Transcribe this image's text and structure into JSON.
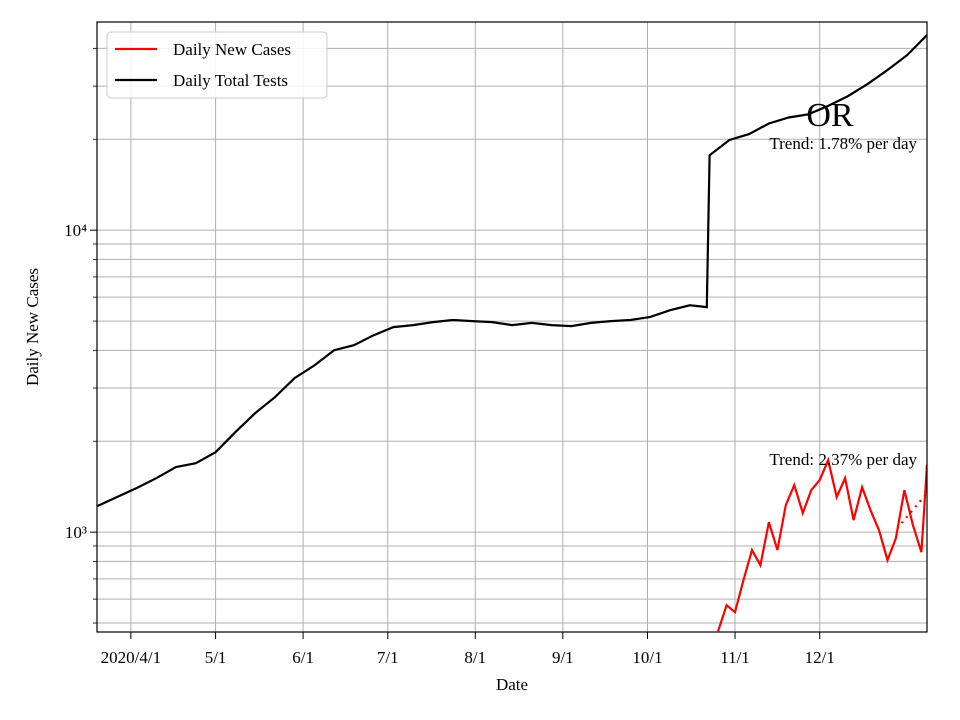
{
  "chart_data": {
    "type": "line",
    "xlabel": "Date",
    "ylabel": "Daily New Cases",
    "log_y": true,
    "grid": true,
    "legend": "upper left",
    "xlim": [
      "2020-03-20",
      "2021-01-08"
    ],
    "xticks": [
      {
        "value": "2020-04-01",
        "label": "2020/4/1"
      },
      {
        "value": "2020-05-01",
        "label": "5/1"
      },
      {
        "value": "2020-06-01",
        "label": "6/1"
      },
      {
        "value": "2020-07-01",
        "label": "7/1"
      },
      {
        "value": "2020-08-01",
        "label": "8/1"
      },
      {
        "value": "2020-09-01",
        "label": "9/1"
      },
      {
        "value": "2020-10-01",
        "label": "10/1"
      },
      {
        "value": "2020-11-01",
        "label": "11/1"
      },
      {
        "value": "2020-12-01",
        "label": "12/1"
      }
    ],
    "ylim": [
      467,
      48900
    ],
    "yticks": [
      {
        "value": 1000,
        "label": "10³"
      },
      {
        "value": 10000,
        "label": "10⁴"
      }
    ],
    "yminorticks": [
      500,
      600,
      700,
      800,
      900,
      2000,
      3000,
      4000,
      5000,
      6000,
      7000,
      8000,
      9000,
      20000,
      30000,
      40000
    ],
    "series": [
      {
        "name": "Daily New Cases",
        "color": "#ff0000",
        "x": [
          "2020-10-26",
          "2020-10-29",
          "2020-11-01",
          "2020-11-04",
          "2020-11-07",
          "2020-11-10",
          "2020-11-13",
          "2020-11-16",
          "2020-11-19",
          "2020-11-22",
          "2020-11-25",
          "2020-11-28",
          "2020-12-01",
          "2020-12-04",
          "2020-12-07",
          "2020-12-10",
          "2020-12-13",
          "2020-12-16",
          "2020-12-19",
          "2020-12-22",
          "2020-12-25",
          "2020-12-28",
          "2020-12-31",
          "2021-01-03",
          "2021-01-06",
          "2021-01-08"
        ],
        "values": [
          470,
          573,
          543,
          694,
          872,
          777,
          1079,
          872,
          1229,
          1431,
          1156,
          1378,
          1487,
          1731,
          1306,
          1510,
          1096,
          1409,
          1183,
          1015,
          808,
          955,
          1378,
          1055,
          858,
          1667
        ]
      },
      {
        "name": "Daily Total Tests",
        "color": "#000000",
        "x": [
          "2020-03-20",
          "2020-03-27",
          "2020-04-03",
          "2020-04-10",
          "2020-04-17",
          "2020-04-24",
          "2020-05-01",
          "2020-05-08",
          "2020-05-15",
          "2020-05-22",
          "2020-05-29",
          "2020-06-05",
          "2020-06-12",
          "2020-06-19",
          "2020-06-26",
          "2020-07-03",
          "2020-07-10",
          "2020-07-17",
          "2020-07-24",
          "2020-07-31",
          "2020-08-07",
          "2020-08-14",
          "2020-08-21",
          "2020-08-28",
          "2020-09-04",
          "2020-09-11",
          "2020-09-18",
          "2020-09-25",
          "2020-10-02",
          "2020-10-09",
          "2020-10-16",
          "2020-10-22",
          "2020-10-23",
          "2020-10-30",
          "2020-11-06",
          "2020-11-13",
          "2020-11-20",
          "2020-11-27",
          "2020-12-04",
          "2020-12-11",
          "2020-12-18",
          "2020-12-25",
          "2021-01-01",
          "2021-01-08"
        ],
        "values": [
          1219,
          1306,
          1399,
          1509,
          1642,
          1692,
          1840,
          2143,
          2477,
          2797,
          3236,
          3566,
          4004,
          4160,
          4489,
          4775,
          4850,
          4960,
          5040,
          5000,
          4960,
          4850,
          4930,
          4850,
          4810,
          4930,
          5000,
          5040,
          5160,
          5430,
          5640,
          5560,
          17700,
          19880,
          20800,
          22560,
          23600,
          24200,
          25800,
          27800,
          30500,
          33900,
          38000,
          44300
        ]
      }
    ],
    "trend_lines": [
      {
        "color": "#ff0000",
        "x": [
          "2020-12-30",
          "2021-01-08"
        ],
        "values": [
          1071,
          1346
        ]
      }
    ],
    "annotations": [
      "OR",
      "Trend: 1.78% per day",
      "Trend: 2.37% per day"
    ]
  }
}
